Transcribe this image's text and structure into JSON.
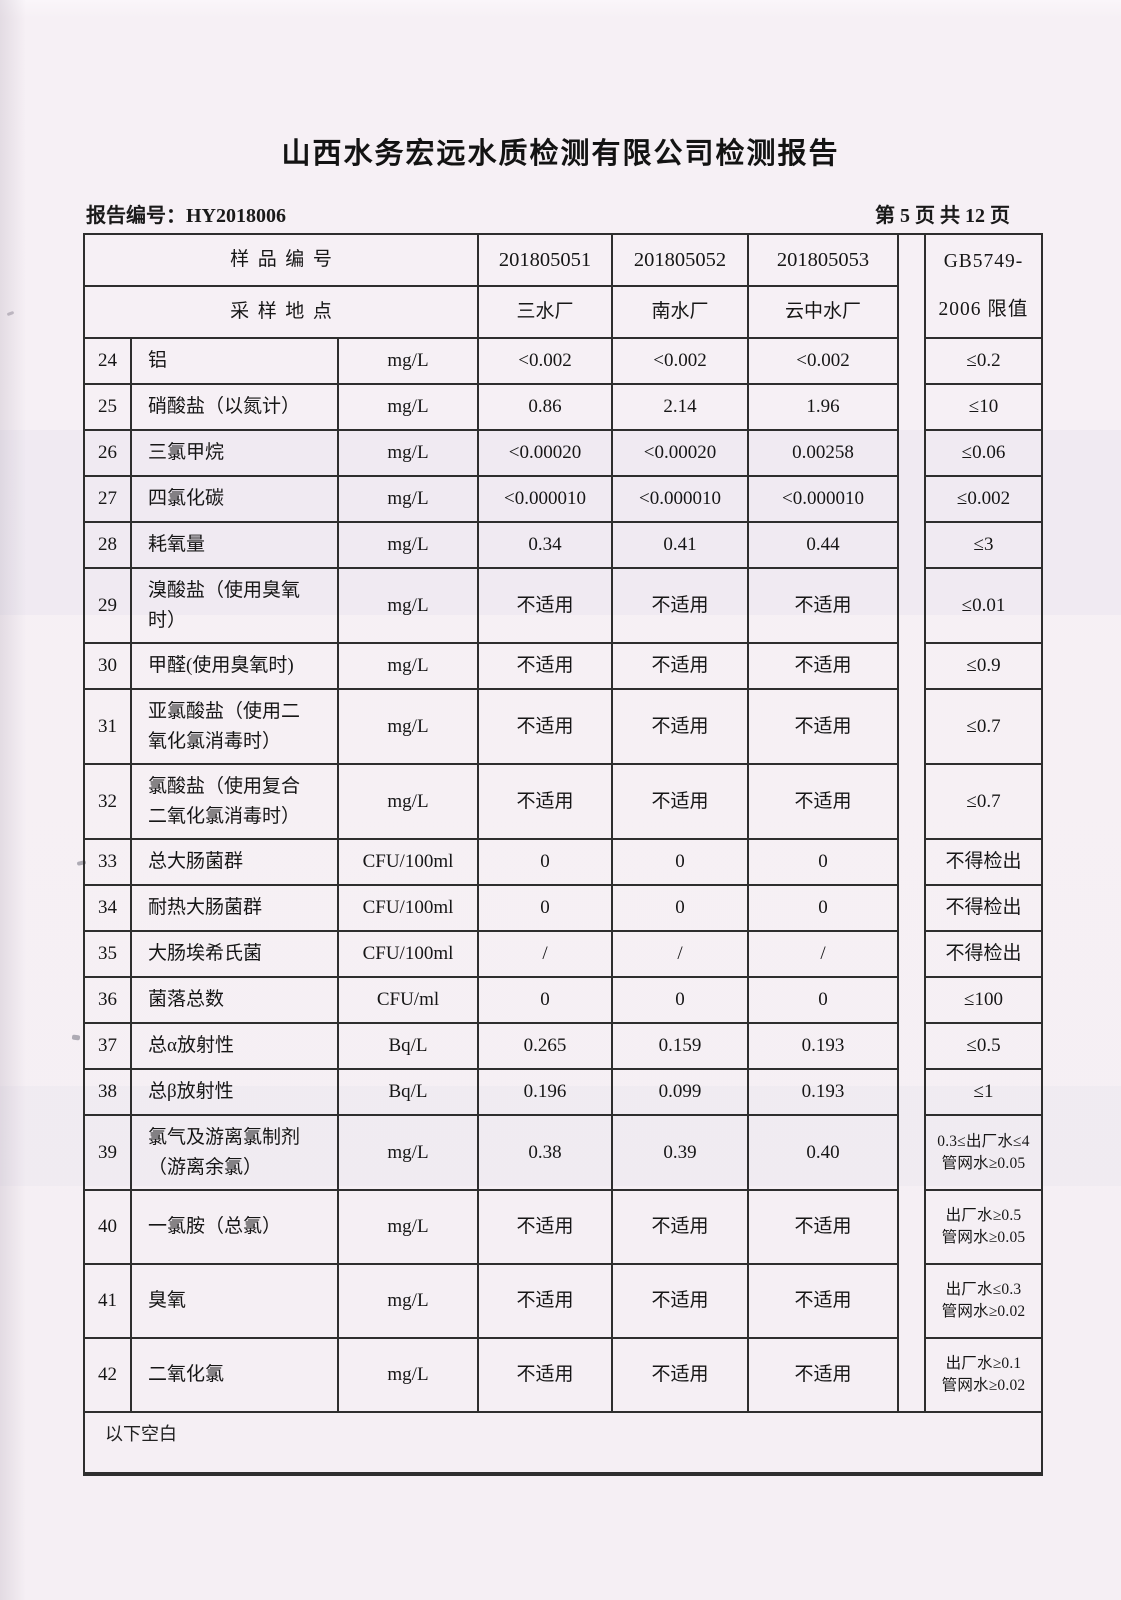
{
  "page": {
    "title": "山西水务宏远水质检测有限公司检测报告",
    "report_no": "报告编号：HY2018006",
    "page_info": "第 5 页 共 12 页"
  },
  "table": {
    "header": {
      "sample_row_label": "样品编号",
      "location_row_label": "采样地点",
      "sample_ids": [
        "201805051",
        "201805052",
        "201805053"
      ],
      "locations": [
        "三水厂",
        "南水厂",
        "云中水厂"
      ],
      "limit_line1": "GB5749-",
      "limit_line2": "2006 限值"
    },
    "rows": [
      {
        "no": "24",
        "name": "铝",
        "unit": "mg/L",
        "v1": "<0.002",
        "v2": "<0.002",
        "v3": "<0.002",
        "limit": "≤0.2"
      },
      {
        "no": "25",
        "name": "硝酸盐（以氮计）",
        "unit": "mg/L",
        "v1": "0.86",
        "v2": "2.14",
        "v3": "1.96",
        "limit": "≤10"
      },
      {
        "no": "26",
        "name": "三氯甲烷",
        "unit": "mg/L",
        "v1": "<0.00020",
        "v2": "<0.00020",
        "v3": "0.00258",
        "limit": "≤0.06"
      },
      {
        "no": "27",
        "name": "四氯化碳",
        "unit": "mg/L",
        "v1": "<0.000010",
        "v2": "<0.000010",
        "v3": "<0.000010",
        "limit": "≤0.002"
      },
      {
        "no": "28",
        "name": "耗氧量",
        "unit": "mg/L",
        "v1": "0.34",
        "v2": "0.41",
        "v3": "0.44",
        "limit": "≤3"
      },
      {
        "no": "29",
        "name": "溴酸盐（使用臭氧时）",
        "unit": "mg/L",
        "v1": "不适用",
        "v2": "不适用",
        "v3": "不适用",
        "limit": "≤0.01"
      },
      {
        "no": "30",
        "name": "甲醛(使用臭氧时)",
        "unit": "mg/L",
        "v1": "不适用",
        "v2": "不适用",
        "v3": "不适用",
        "limit": "≤0.9"
      },
      {
        "no": "31",
        "name": "亚氯酸盐（使用二氧化氯消毒时）",
        "unit": "mg/L",
        "v1": "不适用",
        "v2": "不适用",
        "v3": "不适用",
        "limit": "≤0.7"
      },
      {
        "no": "32",
        "name": "氯酸盐（使用复合二氧化氯消毒时）",
        "unit": "mg/L",
        "v1": "不适用",
        "v2": "不适用",
        "v3": "不适用",
        "limit": "≤0.7"
      },
      {
        "no": "33",
        "name": "总大肠菌群",
        "unit": "CFU/100ml",
        "v1": "0",
        "v2": "0",
        "v3": "0",
        "limit": "不得检出"
      },
      {
        "no": "34",
        "name": "耐热大肠菌群",
        "unit": "CFU/100ml",
        "v1": "0",
        "v2": "0",
        "v3": "0",
        "limit": "不得检出"
      },
      {
        "no": "35",
        "name": "大肠埃希氏菌",
        "unit": "CFU/100ml",
        "v1": "/",
        "v2": "/",
        "v3": "/",
        "limit": "不得检出"
      },
      {
        "no": "36",
        "name": "菌落总数",
        "unit": "CFU/ml",
        "v1": "0",
        "v2": "0",
        "v3": "0",
        "limit": "≤100"
      },
      {
        "no": "37",
        "name": "总α放射性",
        "unit": "Bq/L",
        "v1": "0.265",
        "v2": "0.159",
        "v3": "0.193",
        "limit": "≤0.5"
      },
      {
        "no": "38",
        "name": "总β放射性",
        "unit": "Bq/L",
        "v1": "0.196",
        "v2": "0.099",
        "v3": "0.193",
        "limit": "≤1"
      },
      {
        "no": "39",
        "name": "氯气及游离氯制剂（游离余氯）",
        "unit": "mg/L",
        "v1": "0.38",
        "v2": "0.39",
        "v3": "0.40",
        "limit": [
          "0.3≤出厂水≤4",
          "管网水≥0.05"
        ]
      },
      {
        "no": "40",
        "name": "一氯胺（总氯）",
        "unit": "mg/L",
        "v1": "不适用",
        "v2": "不适用",
        "v3": "不适用",
        "limit": [
          "出厂水≥0.5",
          "管网水≥0.05"
        ]
      },
      {
        "no": "41",
        "name": "臭氧",
        "unit": "mg/L",
        "v1": "不适用",
        "v2": "不适用",
        "v3": "不适用",
        "limit": [
          "出厂水≤0.3",
          "管网水≥0.02"
        ]
      },
      {
        "no": "42",
        "name": "二氧化氯",
        "unit": "mg/L",
        "v1": "不适用",
        "v2": "不适用",
        "v3": "不适用",
        "limit": [
          "出厂水≥0.1",
          "管网水≥0.02"
        ]
      }
    ],
    "below_blank": "以下空白"
  }
}
